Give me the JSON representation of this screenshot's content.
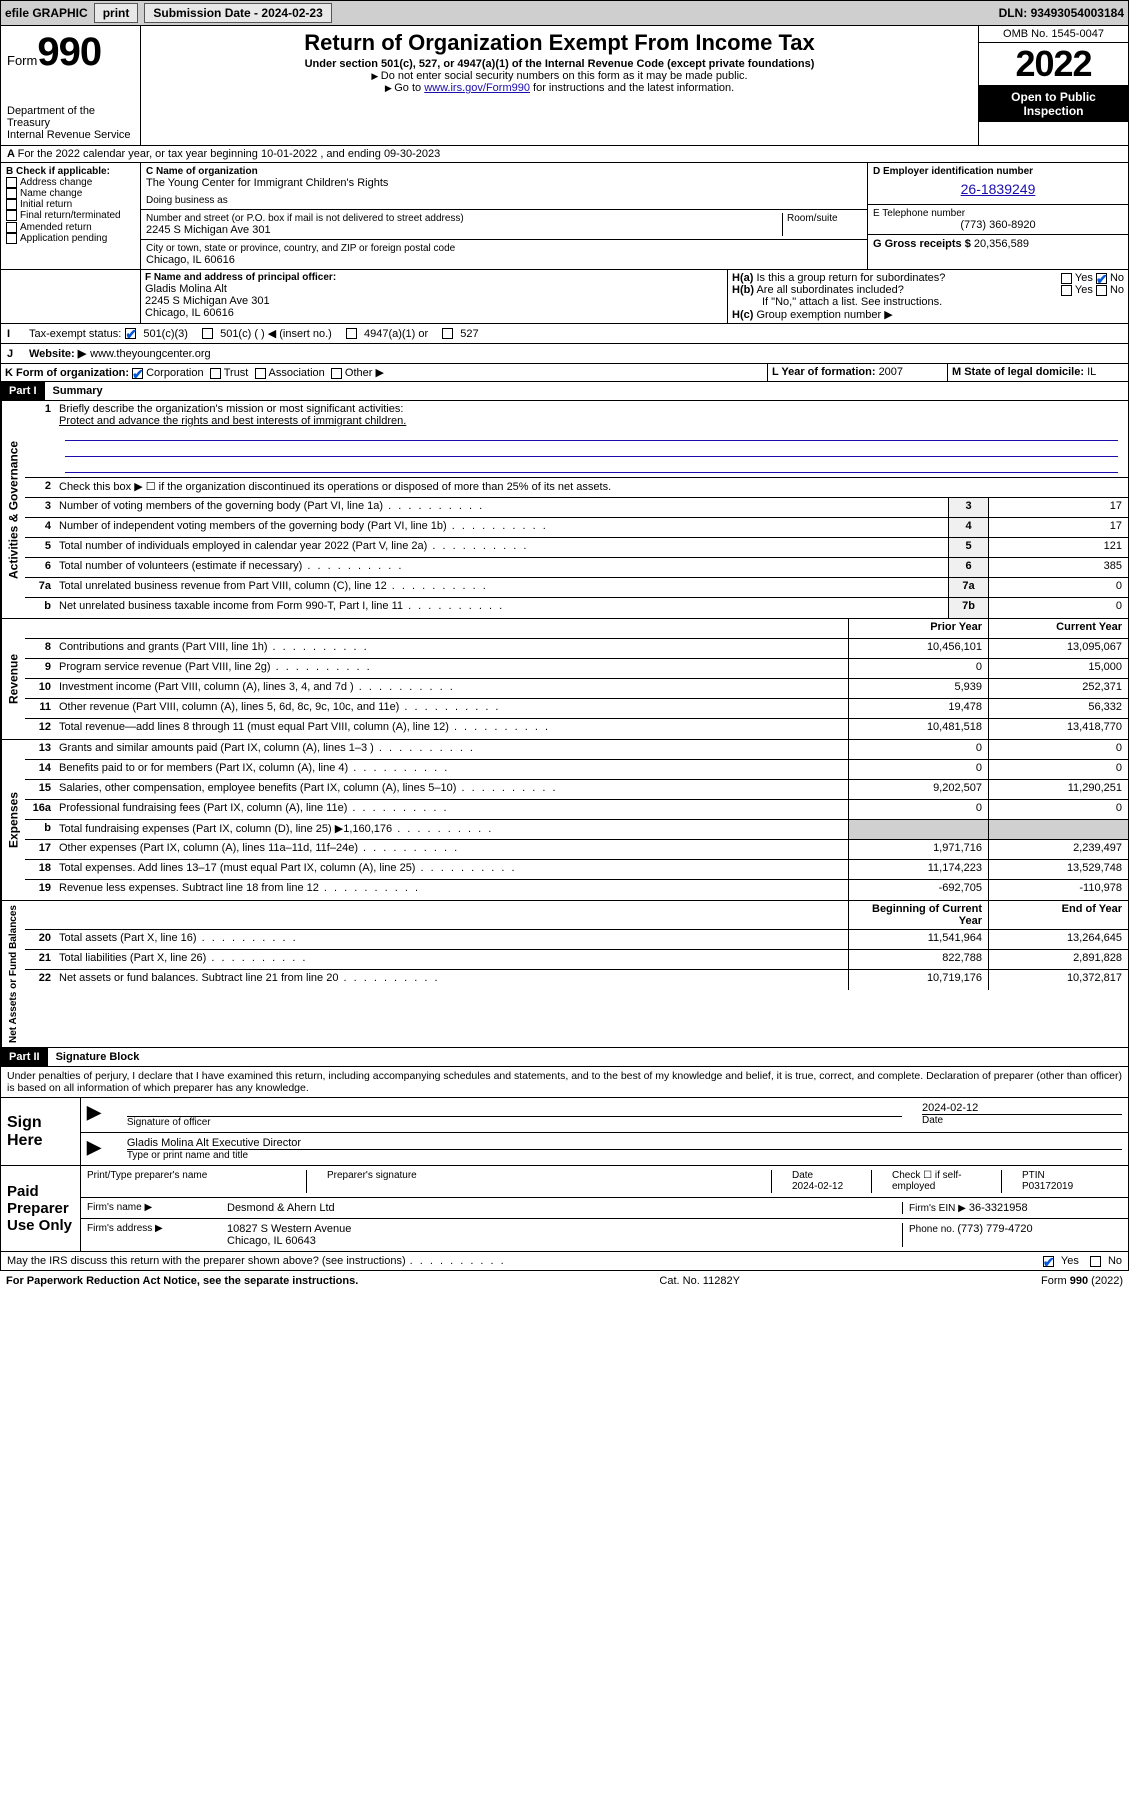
{
  "topbar": {
    "efile": "efile GRAPHIC",
    "print": "print",
    "sub_label": "Submission Date - ",
    "sub_date": "2024-02-23",
    "dln_label": "DLN: ",
    "dln": "93493054003184"
  },
  "header": {
    "form_word": "Form",
    "form_num": "990",
    "dept": "Department of the Treasury",
    "irs": "Internal Revenue Service",
    "title": "Return of Organization Exempt From Income Tax",
    "sub": "Under section 501(c), 527, or 4947(a)(1) of the Internal Revenue Code (except private foundations)",
    "note1": "Do not enter social security numbers on this form as it may be made public.",
    "note2_pre": "Go to ",
    "note2_link": "www.irs.gov/Form990",
    "note2_post": " for instructions and the latest information.",
    "omb": "OMB No. 1545-0047",
    "year": "2022",
    "inspect": "Open to Public Inspection"
  },
  "lineA": {
    "text_pre": "For the 2022 calendar year, or tax year beginning ",
    "begin": "10-01-2022",
    "mid": " , and ending ",
    "end": "09-30-2023"
  },
  "B": {
    "label": "B Check if applicable:",
    "items": [
      "Address change",
      "Name change",
      "Initial return",
      "Final return/terminated",
      "Amended return",
      "Application pending"
    ]
  },
  "C": {
    "label": "C Name of organization",
    "name": "The Young Center for Immigrant Children's Rights",
    "dba_label": "Doing business as",
    "addr_label": "Number and street (or P.O. box if mail is not delivered to street address)",
    "room_label": "Room/suite",
    "addr": "2245 S Michigan Ave 301",
    "city_label": "City or town, state or province, country, and ZIP or foreign postal code",
    "city": "Chicago, IL  60616"
  },
  "D": {
    "label": "D Employer identification number",
    "ein": "26-1839249"
  },
  "E": {
    "label": "E Telephone number",
    "val": "(773) 360-8920"
  },
  "G": {
    "label": "G Gross receipts $ ",
    "val": "20,356,589"
  },
  "F": {
    "label": "F Name and address of principal officer:",
    "name": "Gladis Molina Alt",
    "addr1": "2245 S Michigan Ave 301",
    "addr2": "Chicago, IL  60616"
  },
  "H": {
    "a": "Is this a group return for subordinates?",
    "b": "Are all subordinates included?",
    "b_note": "If \"No,\" attach a list. See instructions.",
    "c": "Group exemption number ▶",
    "yes": "Yes",
    "no": "No"
  },
  "I": {
    "label": "Tax-exempt status:",
    "opts": [
      "501(c)(3)",
      "501(c) (  ) ◀ (insert no.)",
      "4947(a)(1) or",
      "527"
    ]
  },
  "J": {
    "label": "Website: ▶",
    "val": "www.theyoungcenter.org"
  },
  "K": {
    "label": "K Form of organization:",
    "opts": [
      "Corporation",
      "Trust",
      "Association",
      "Other ▶"
    ]
  },
  "L": {
    "label": "L Year of formation: ",
    "val": "2007"
  },
  "M": {
    "label": "M State of legal domicile: ",
    "val": "IL"
  },
  "partI": {
    "tag": "Part I",
    "title": "Summary"
  },
  "summary": {
    "q1": "Briefly describe the organization's mission or most significant activities:",
    "q1a": "Protect and advance the rights and best interests of immigrant children.",
    "q2": "Check this box ▶ ☐  if the organization discontinued its operations or disposed of more than 25% of its net assets.",
    "rows_gov": [
      {
        "n": "3",
        "d": "Number of voting members of the governing body (Part VI, line 1a)",
        "box": "3",
        "v": "17"
      },
      {
        "n": "4",
        "d": "Number of independent voting members of the governing body (Part VI, line 1b)",
        "box": "4",
        "v": "17"
      },
      {
        "n": "5",
        "d": "Total number of individuals employed in calendar year 2022 (Part V, line 2a)",
        "box": "5",
        "v": "121"
      },
      {
        "n": "6",
        "d": "Total number of volunteers (estimate if necessary)",
        "box": "6",
        "v": "385"
      },
      {
        "n": "7a",
        "d": "Total unrelated business revenue from Part VIII, column (C), line 12",
        "box": "7a",
        "v": "0"
      },
      {
        "n": "b",
        "d": "Net unrelated business taxable income from Form 990-T, Part I, line 11",
        "box": "7b",
        "v": "0"
      }
    ],
    "col_prior": "Prior Year",
    "col_curr": "Current Year",
    "rev": [
      {
        "n": "8",
        "d": "Contributions and grants (Part VIII, line 1h)",
        "p": "10,456,101",
        "c": "13,095,067"
      },
      {
        "n": "9",
        "d": "Program service revenue (Part VIII, line 2g)",
        "p": "0",
        "c": "15,000"
      },
      {
        "n": "10",
        "d": "Investment income (Part VIII, column (A), lines 3, 4, and 7d )",
        "p": "5,939",
        "c": "252,371"
      },
      {
        "n": "11",
        "d": "Other revenue (Part VIII, column (A), lines 5, 6d, 8c, 9c, 10c, and 11e)",
        "p": "19,478",
        "c": "56,332"
      },
      {
        "n": "12",
        "d": "Total revenue—add lines 8 through 11 (must equal Part VIII, column (A), line 12)",
        "p": "10,481,518",
        "c": "13,418,770"
      }
    ],
    "exp": [
      {
        "n": "13",
        "d": "Grants and similar amounts paid (Part IX, column (A), lines 1–3 )",
        "p": "0",
        "c": "0"
      },
      {
        "n": "14",
        "d": "Benefits paid to or for members (Part IX, column (A), line 4)",
        "p": "0",
        "c": "0"
      },
      {
        "n": "15",
        "d": "Salaries, other compensation, employee benefits (Part IX, column (A), lines 5–10)",
        "p": "9,202,507",
        "c": "11,290,251"
      },
      {
        "n": "16a",
        "d": "Professional fundraising fees (Part IX, column (A), line 11e)",
        "p": "0",
        "c": "0"
      },
      {
        "n": "b",
        "d": "Total fundraising expenses (Part IX, column (D), line 25) ▶1,160,176",
        "p": "",
        "c": "",
        "shade": true
      },
      {
        "n": "17",
        "d": "Other expenses (Part IX, column (A), lines 11a–11d, 11f–24e)",
        "p": "1,971,716",
        "c": "2,239,497"
      },
      {
        "n": "18",
        "d": "Total expenses. Add lines 13–17 (must equal Part IX, column (A), line 25)",
        "p": "11,174,223",
        "c": "13,529,748"
      },
      {
        "n": "19",
        "d": "Revenue less expenses. Subtract line 18 from line 12",
        "p": "-692,705",
        "c": "-110,978"
      }
    ],
    "col_begin": "Beginning of Current Year",
    "col_end": "End of Year",
    "net": [
      {
        "n": "20",
        "d": "Total assets (Part X, line 16)",
        "p": "11,541,964",
        "c": "13,264,645"
      },
      {
        "n": "21",
        "d": "Total liabilities (Part X, line 26)",
        "p": "822,788",
        "c": "2,891,828"
      },
      {
        "n": "22",
        "d": "Net assets or fund balances. Subtract line 21 from line 20",
        "p": "10,719,176",
        "c": "10,372,817"
      }
    ],
    "vtabs": {
      "gov": "Activities & Governance",
      "rev": "Revenue",
      "exp": "Expenses",
      "net": "Net Assets or Fund Balances"
    }
  },
  "partII": {
    "tag": "Part II",
    "title": "Signature Block"
  },
  "sig": {
    "decl": "Under penalties of perjury, I declare that I have examined this return, including accompanying schedules and statements, and to the best of my knowledge and belief, it is true, correct, and complete. Declaration of preparer (other than officer) is based on all information of which preparer has any knowledge.",
    "sign_here": "Sign Here",
    "sig_officer": "Signature of officer",
    "date_lbl": "Date",
    "date": "2024-02-12",
    "name_title": "Gladis Molina Alt Executive Director",
    "name_lbl": "Type or print name and title",
    "paid": "Paid Preparer Use Only",
    "prep_name_lbl": "Print/Type preparer's name",
    "prep_sig_lbl": "Preparer's signature",
    "prep_date": "2024-02-12",
    "check_lbl": "Check ☐ if self-employed",
    "ptin_lbl": "PTIN",
    "ptin": "P03172019",
    "firm_name_lbl": "Firm's name    ▶",
    "firm_name": "Desmond & Ahern Ltd",
    "firm_ein_lbl": "Firm's EIN ▶",
    "firm_ein": "36-3321958",
    "firm_addr_lbl": "Firm's address ▶",
    "firm_addr1": "10827 S Western Avenue",
    "firm_addr2": "Chicago, IL  60643",
    "phone_lbl": "Phone no. ",
    "phone": "(773) 779-4720",
    "may_irs": "May the IRS discuss this return with the preparer shown above? (see instructions)"
  },
  "footer": {
    "left": "For Paperwork Reduction Act Notice, see the separate instructions.",
    "mid": "Cat. No. 11282Y",
    "right": "Form 990 (2022)"
  }
}
